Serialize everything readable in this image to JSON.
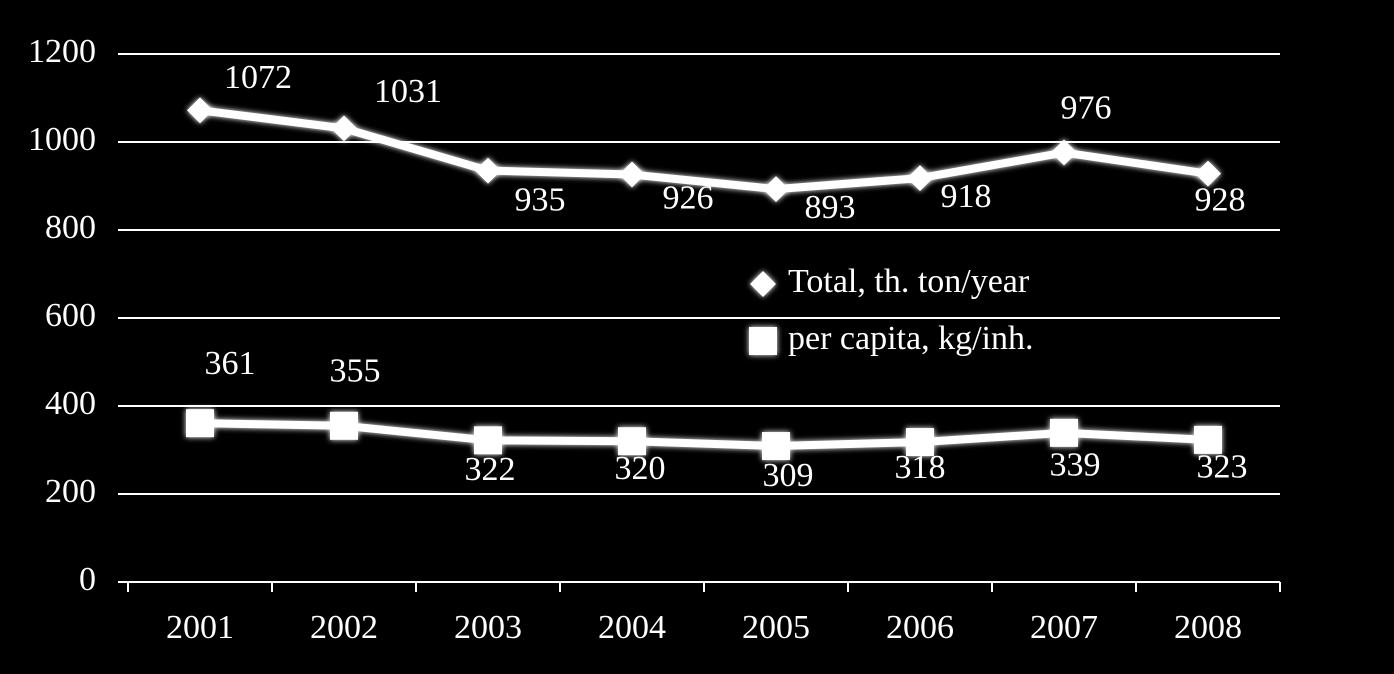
{
  "chart_data": {
    "type": "line",
    "categories": [
      "2001",
      "2002",
      "2003",
      "2004",
      "2005",
      "2006",
      "2007",
      "2008"
    ],
    "series": [
      {
        "name": "Total, th. ton/year",
        "color": "#ffffff",
        "marker": "diamond",
        "values": [
          1072,
          1031,
          935,
          926,
          893,
          918,
          976,
          928
        ]
      },
      {
        "name": "per capita, kg/inh.",
        "color": "#ffffff",
        "marker": "square",
        "values": [
          361,
          355,
          322,
          320,
          309,
          318,
          339,
          323
        ]
      }
    ],
    "ylim": [
      0,
      1200
    ],
    "yticks": [
      0,
      200,
      400,
      600,
      800,
      1000,
      1200
    ],
    "grid": true
  }
}
